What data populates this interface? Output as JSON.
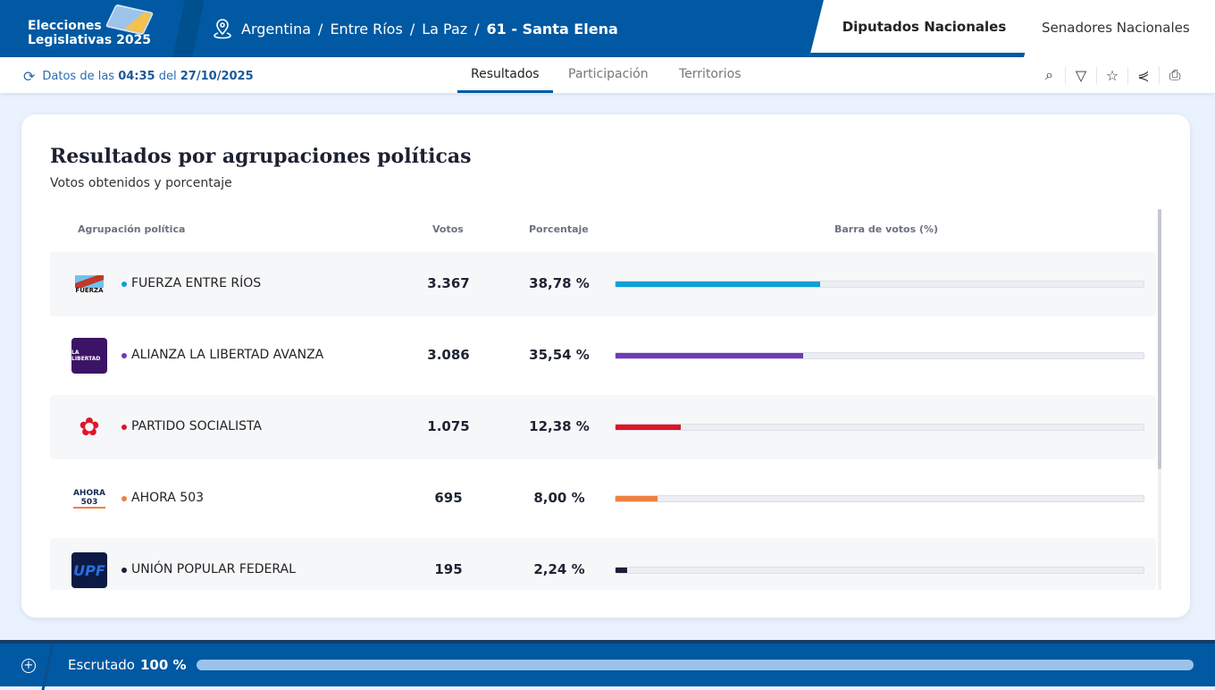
{
  "header": {
    "brand_line1": "Elecciones",
    "brand_line2": "Legislativas 2025",
    "breadcrumb": [
      "Argentina",
      "Entre Ríos",
      "La Paz",
      "61 - Santa Elena"
    ],
    "tabs": [
      {
        "label": "Diputados Nacionales",
        "active": true
      },
      {
        "label": "Senadores Nacionales",
        "active": false
      }
    ]
  },
  "subnav": {
    "update_prefix": "Datos de las",
    "time": "04:35",
    "update_mid": "del",
    "date": "27/10/2025",
    "tabs": [
      {
        "label": "Resultados",
        "active": true
      },
      {
        "label": "Participación"
      },
      {
        "label": "Territorios"
      }
    ],
    "tools": [
      "search-icon",
      "filter-icon",
      "star-icon",
      "share-icon",
      "print-icon"
    ]
  },
  "card": {
    "title": "Resultados por agrupaciones políticas",
    "subtitle": "Votos obtenidos y porcentaje",
    "columns": {
      "party": "Agrupación política",
      "votes": "Votos",
      "percent": "Porcentaje",
      "bar": "Barra de votos (%)"
    },
    "rows": [
      {
        "name": "FUERZA ENTRE RÍOS",
        "votes": "3.367",
        "percent": "38,78 %",
        "value": 38.78,
        "color": "#0aa0d8"
      },
      {
        "name": "ALIANZA LA LIBERTAD AVANZA",
        "votes": "3.086",
        "percent": "35,54 %",
        "value": 35.54,
        "color": "#7239b8"
      },
      {
        "name": "PARTIDO SOCIALISTA",
        "votes": "1.075",
        "percent": "12,38 %",
        "value": 12.38,
        "color": "#e0142a"
      },
      {
        "name": "AHORA 503",
        "votes": "695",
        "percent": "8,00 %",
        "value": 8.0,
        "color": "#f08040"
      },
      {
        "name": "UNIÓN POPULAR FEDERAL",
        "votes": "195",
        "percent": "2,24 %",
        "value": 2.24,
        "color": "#1a1f3a"
      }
    ]
  },
  "footer": {
    "label": "Escrutado",
    "value": "100 %",
    "progress": 100
  }
}
